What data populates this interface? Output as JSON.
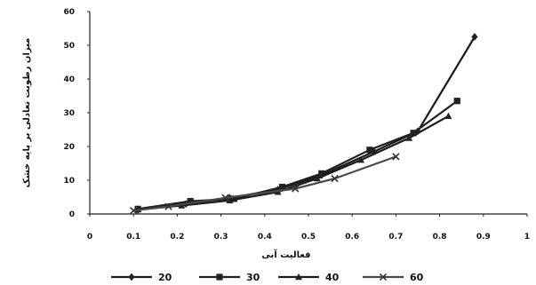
{
  "chart_data": {
    "type": "line",
    "xlabel": "فعالیت آبی",
    "ylabel": "میزان رطوبت تعادلی بر پایه خشک",
    "xlim": [
      0,
      1
    ],
    "ylim": [
      0,
      60
    ],
    "x_ticks": [
      "0",
      "0.1",
      "0.2",
      "0.3",
      "0.4",
      "0.5",
      "0.6",
      "0.7",
      "0.8",
      "0.9",
      "1"
    ],
    "y_ticks": [
      "0",
      "10",
      "20",
      "30",
      "40",
      "50",
      "60"
    ],
    "grid": false,
    "legend_position": "bottom",
    "series": [
      {
        "name": "20",
        "marker": "diamond",
        "x": [
          0.11,
          0.22,
          0.32,
          0.43,
          0.53,
          0.65,
          0.75,
          0.88
        ],
        "y": [
          1.2,
          3.0,
          4.8,
          7.2,
          11.5,
          18.5,
          24.5,
          52.5
        ]
      },
      {
        "name": "30",
        "marker": "square",
        "x": [
          0.11,
          0.23,
          0.33,
          0.44,
          0.53,
          0.64,
          0.74,
          0.84
        ],
        "y": [
          1.5,
          3.8,
          4.5,
          8.0,
          12.0,
          19.0,
          24.0,
          33.5
        ]
      },
      {
        "name": "40",
        "marker": "triangle",
        "x": [
          0.11,
          0.21,
          0.32,
          0.43,
          0.52,
          0.62,
          0.73,
          0.82
        ],
        "y": [
          1.3,
          2.5,
          4.0,
          6.5,
          10.5,
          16.0,
          22.5,
          29.0
        ]
      },
      {
        "name": "60",
        "marker": "x",
        "x": [
          0.1,
          0.18,
          0.31,
          0.47,
          0.56,
          0.7
        ],
        "y": [
          1.0,
          2.2,
          4.8,
          7.5,
          10.5,
          17.0
        ]
      }
    ]
  }
}
